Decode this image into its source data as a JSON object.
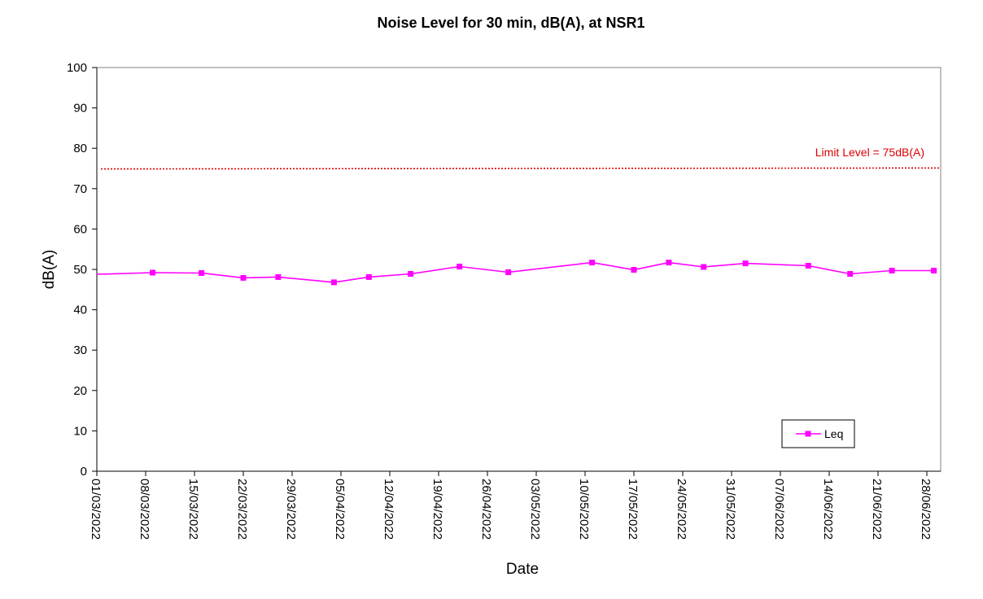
{
  "chart_data": {
    "type": "line",
    "title": "Noise Level for 30 min, dB(A), at NSR1",
    "xlabel": "Date",
    "ylabel": "dB(A)",
    "xlim": [
      "2022-03-01",
      "2022-06-28"
    ],
    "ylim": [
      0,
      100
    ],
    "ytick_step": 10,
    "yticks": [
      "0",
      "10",
      "20",
      "30",
      "40",
      "50",
      "60",
      "70",
      "80",
      "90",
      "100"
    ],
    "xticks": [
      "01/03/2022",
      "08/03/2022",
      "15/03/2022",
      "22/03/2022",
      "29/03/2022",
      "05/04/2022",
      "12/04/2022",
      "19/04/2022",
      "26/04/2022",
      "03/05/2022",
      "10/05/2022",
      "17/05/2022",
      "24/05/2022",
      "31/05/2022",
      "07/06/2022",
      "14/06/2022",
      "21/06/2022",
      "28/06/2022"
    ],
    "grid": false,
    "legend_position": "bottom-right",
    "series": [
      {
        "name": "Leq",
        "color": "#ff00ff",
        "marker": "square",
        "x": [
          "2022-03-01",
          "2022-03-09",
          "2022-03-16",
          "2022-03-22",
          "2022-03-27",
          "2022-04-04",
          "2022-04-09",
          "2022-04-15",
          "2022-04-22",
          "2022-04-29",
          "2022-05-11",
          "2022-05-17",
          "2022-05-22",
          "2022-05-27",
          "2022-06-02",
          "2022-06-11",
          "2022-06-17",
          "2022-06-23",
          "2022-06-29"
        ],
        "y": [
          48.8,
          49.2,
          49.1,
          47.9,
          48.1,
          46.8,
          48.1,
          48.9,
          50.7,
          49.3,
          51.7,
          49.9,
          51.7,
          50.6,
          51.5,
          50.9,
          48.9,
          49.7,
          49.7
        ]
      }
    ],
    "limit_line": {
      "value": 75,
      "label": "Limit Level = 75dB(A)",
      "color": "#dd0000",
      "style": "dotted"
    }
  }
}
